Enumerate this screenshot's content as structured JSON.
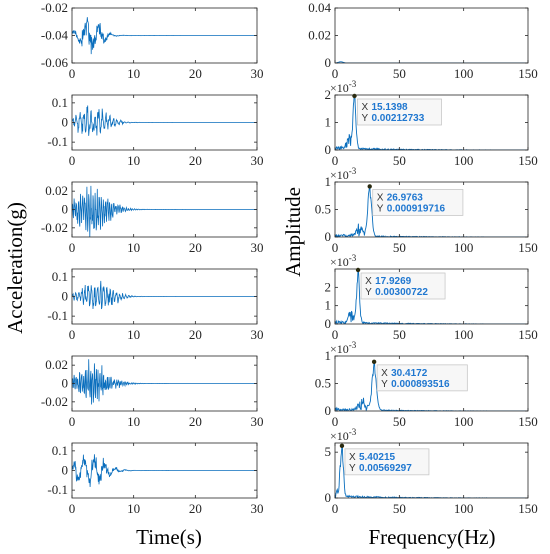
{
  "figure": {
    "xlabel_left": "Time(s)",
    "ylabel_left": "Acceleration(g)",
    "xlabel_right": "Frequency(Hz)",
    "ylabel_right": "Amplitude"
  },
  "colors": {
    "signal": "#0a6ebd",
    "axis": "#262626",
    "tip_marker": "#2b2b10"
  },
  "chart_data": [
    {
      "id": "t1",
      "type": "line",
      "x_range": [
        0,
        30
      ],
      "ylim": [
        -0.06,
        -0.02
      ],
      "x_ticks": [
        "0",
        "10",
        "20",
        "30"
      ],
      "y_ticks": [
        "-0.02",
        "-0.04",
        "-0.06"
      ],
      "y_tick_values": [
        -0.02,
        -0.04,
        -0.06
      ],
      "signal": {
        "offset": -0.04,
        "amp": 0.014,
        "center": 3.0,
        "decay": 2.2,
        "dur": 29,
        "freq": 4.5
      }
    },
    {
      "id": "t2",
      "type": "line",
      "x_range": [
        0,
        30
      ],
      "ylim": [
        -0.14,
        0.14
      ],
      "x_ticks": [
        "0",
        "10",
        "20",
        "30"
      ],
      "y_ticks": [
        "0.1",
        "0",
        "-0.1"
      ],
      "y_tick_values": [
        0.1,
        0,
        -0.1
      ],
      "signal": {
        "offset": 0,
        "amp": 0.085,
        "center": 3.5,
        "decay": 3.0,
        "dur": 29,
        "freq": 15.1
      }
    },
    {
      "id": "t3",
      "type": "line",
      "x_range": [
        0,
        30
      ],
      "ylim": [
        -0.03,
        0.03
      ],
      "x_ticks": [
        "0",
        "10",
        "20",
        "30"
      ],
      "y_ticks": [
        "0.02",
        "0",
        "-0.02"
      ],
      "y_tick_values": [
        0.02,
        0,
        -0.02
      ],
      "signal": {
        "offset": 0,
        "amp": 0.028,
        "center": 3.2,
        "decay": 3.5,
        "dur": 29,
        "freq": 27.0
      }
    },
    {
      "id": "t4",
      "type": "line",
      "x_range": [
        0,
        30
      ],
      "ylim": [
        -0.14,
        0.14
      ],
      "x_ticks": [
        "0",
        "10",
        "20",
        "30"
      ],
      "y_ticks": [
        "0.1",
        "0",
        "-0.1"
      ],
      "y_tick_values": [
        0.1,
        0,
        -0.1
      ],
      "signal": {
        "offset": 0,
        "amp": 0.085,
        "center": 4.2,
        "decay": 3.0,
        "dur": 29,
        "freq": 17.9
      }
    },
    {
      "id": "t5",
      "type": "line",
      "x_range": [
        0,
        30
      ],
      "ylim": [
        -0.03,
        0.03
      ],
      "x_ticks": [
        "0",
        "10",
        "20",
        "30"
      ],
      "y_ticks": [
        "0.02",
        "0",
        "-0.02"
      ],
      "y_tick_values": [
        0.02,
        0,
        -0.02
      ],
      "signal": {
        "offset": 0,
        "amp": 0.022,
        "center": 3.2,
        "decay": 3.6,
        "dur": 16,
        "freq": 30.4
      }
    },
    {
      "id": "t6",
      "type": "line",
      "x_range": [
        0,
        30
      ],
      "ylim": [
        -0.14,
        0.14
      ],
      "x_ticks": [
        "0",
        "10",
        "20",
        "30"
      ],
      "y_ticks": [
        "0.1",
        "0",
        "-0.1"
      ],
      "y_tick_values": [
        0.1,
        0,
        -0.1
      ],
      "signal": {
        "offset": 0,
        "amp": 0.09,
        "center": 2.8,
        "decay": 3.2,
        "dur": 16,
        "freq": 5.4
      }
    },
    {
      "id": "f1",
      "type": "line",
      "x_range": [
        0,
        150
      ],
      "ylim": [
        0,
        0.04
      ],
      "x_ticks": [
        "0",
        "50",
        "100",
        "150"
      ],
      "y_ticks": [
        "0.04",
        "0.02",
        "0"
      ],
      "y_tick_values": [
        0.04,
        0.02,
        0
      ],
      "spectrum": {
        "peak_x": 4.5,
        "peak_y": 0.0009,
        "flat": true
      }
    },
    {
      "id": "f2",
      "type": "line",
      "x_range": [
        0,
        150
      ],
      "ylim": [
        0,
        2.0
      ],
      "x_ticks": [
        "0",
        "50",
        "100",
        "150"
      ],
      "y_ticks": [
        "2",
        "1",
        "0"
      ],
      "y_tick_values": [
        2,
        1,
        0
      ],
      "exponent": "×10",
      "y_unit": "-3",
      "spectrum": {
        "peak_x": 15.1398,
        "peak_y": 2.12733
      },
      "datatip": {
        "x_key": "X",
        "x_val": "15.1398",
        "y_key": "Y",
        "y_val": "0.00212733"
      }
    },
    {
      "id": "f3",
      "type": "line",
      "x_range": [
        0,
        150
      ],
      "ylim": [
        0,
        1.0
      ],
      "x_ticks": [
        "0",
        "50",
        "100",
        "150"
      ],
      "y_ticks": [
        "1",
        "0.5",
        "0"
      ],
      "y_tick_values": [
        1,
        0.5,
        0
      ],
      "exponent": "×10",
      "y_unit": "-3",
      "spectrum": {
        "peak_x": 26.9763,
        "peak_y": 0.919716
      },
      "datatip": {
        "x_key": "X",
        "x_val": "26.9763",
        "y_key": "Y",
        "y_val": "0.000919716"
      }
    },
    {
      "id": "f4",
      "type": "line",
      "x_range": [
        0,
        150
      ],
      "ylim": [
        0,
        3.0
      ],
      "x_ticks": [
        "0",
        "50",
        "100",
        "150"
      ],
      "y_ticks": [
        "2",
        "1",
        "0"
      ],
      "y_tick_values": [
        2,
        1,
        0
      ],
      "exponent": "×10",
      "y_unit": "-3",
      "spectrum": {
        "peak_x": 17.9269,
        "peak_y": 3.00722
      },
      "datatip": {
        "x_key": "X",
        "x_val": "17.9269",
        "y_key": "Y",
        "y_val": "0.00300722"
      }
    },
    {
      "id": "f5",
      "type": "line",
      "x_range": [
        0,
        150
      ],
      "ylim": [
        0,
        1.0
      ],
      "x_ticks": [
        "0",
        "50",
        "100",
        "150"
      ],
      "y_ticks": [
        "1",
        "0.5",
        "0"
      ],
      "y_tick_values": [
        1,
        0.5,
        0
      ],
      "exponent": "×10",
      "y_unit": "-3",
      "spectrum": {
        "peak_x": 30.4172,
        "peak_y": 0.893516
      },
      "datatip": {
        "x_key": "X",
        "x_val": "30.4172",
        "y_key": "Y",
        "y_val": "0.000893516"
      }
    },
    {
      "id": "f6",
      "type": "line",
      "x_range": [
        0,
        150
      ],
      "ylim": [
        0,
        6.0
      ],
      "x_ticks": [
        "0",
        "50",
        "100",
        "150"
      ],
      "y_ticks": [
        "5",
        "0"
      ],
      "y_tick_values": [
        5,
        0
      ],
      "exponent": "×10",
      "y_unit": "-3",
      "spectrum": {
        "peak_x": 5.40215,
        "peak_y": 5.69297
      },
      "datatip": {
        "x_key": "X",
        "x_val": "5.40215",
        "y_key": "Y",
        "y_val": "0.00569297"
      }
    }
  ]
}
